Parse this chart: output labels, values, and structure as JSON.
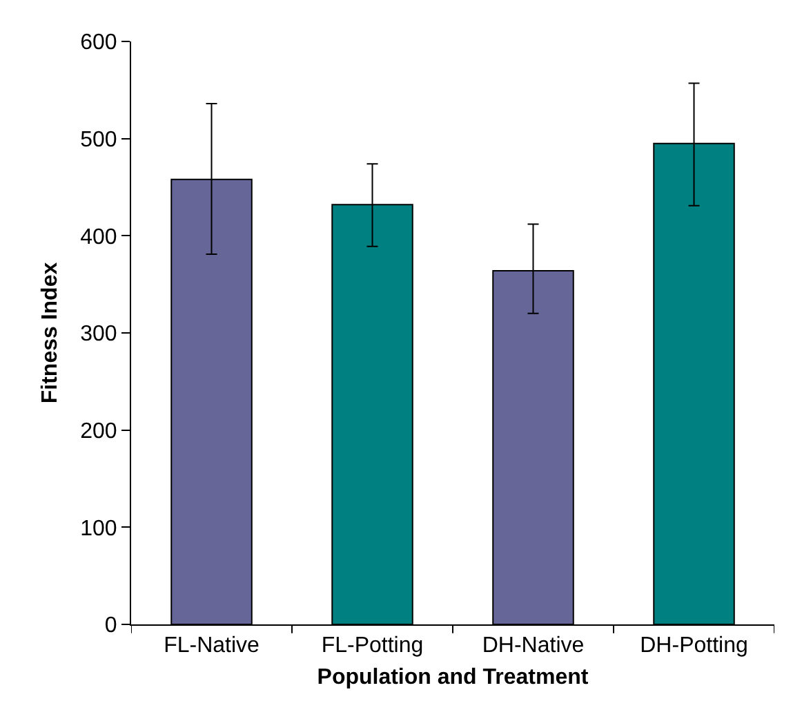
{
  "chart_data": {
    "type": "bar",
    "xlabel": "Population and Treatment",
    "ylabel": "Fitness Index",
    "categories": [
      "FL-Native",
      "FL-Potting",
      "DH-Native",
      "DH-Potting"
    ],
    "values": [
      458,
      432,
      364,
      495
    ],
    "colors": [
      "#666699",
      "#008080",
      "#666699",
      "#008080"
    ],
    "errors": [
      [
        381,
        536
      ],
      [
        389,
        474
      ],
      [
        320,
        412
      ],
      [
        431,
        557
      ]
    ],
    "ylim": [
      0,
      600
    ],
    "yticks": [
      0,
      100,
      200,
      300,
      400,
      500,
      600
    ]
  }
}
